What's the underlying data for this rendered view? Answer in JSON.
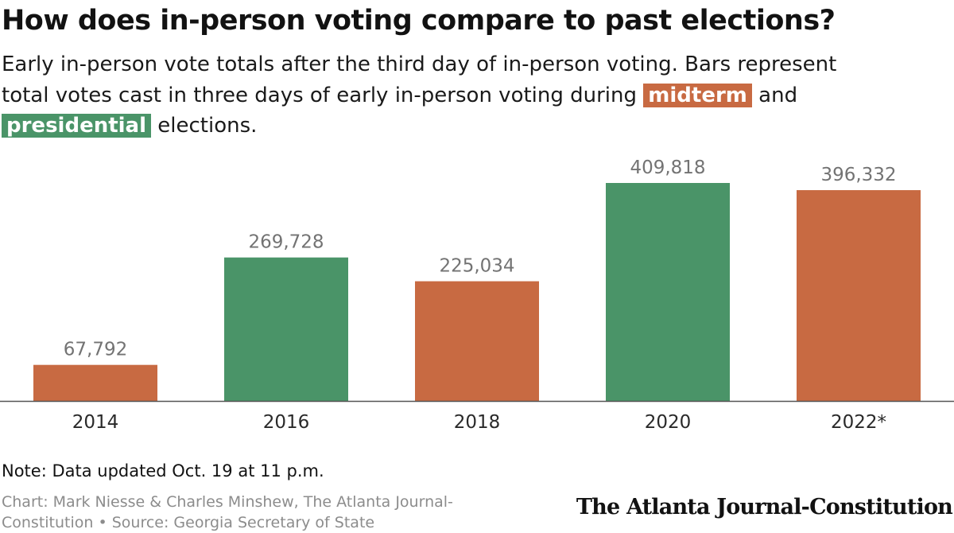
{
  "title": "How does in-person voting compare to past elections?",
  "subtitle": {
    "line1": "Early in-person vote totals after the third day of in-person voting. Bars represent",
    "line2_pre": "total votes cast in three days of early in-person voting during ",
    "midterm_label": "midterm",
    "line2_post": " and",
    "presidential_label": "presidential",
    "line3_post": " elections."
  },
  "colors": {
    "midterm": "#c86a42",
    "presidential": "#4a9468",
    "label": "#737373",
    "axis": "#555555"
  },
  "chart_data": {
    "type": "bar",
    "categories": [
      "2014",
      "2016",
      "2018",
      "2020",
      "2022*"
    ],
    "values": [
      67792,
      269728,
      225034,
      409818,
      396332
    ],
    "value_labels": [
      "67,792",
      "269,728",
      "225,034",
      "409,818",
      "396,332"
    ],
    "election_type": [
      "midterm",
      "presidential",
      "midterm",
      "presidential",
      "midterm"
    ],
    "ylim": [
      0,
      409818
    ],
    "grid": false,
    "legend": "inline in subtitle"
  },
  "note": "Note: Data updated Oct. 19 at 11 p.m.",
  "credit": {
    "line1": "Chart: Mark Niesse & Charles Minshew, The Atlanta Journal-",
    "line2": "Constitution • Source: Georgia Secretary of State"
  },
  "logo": "The Atlanta Journal-Constitution"
}
